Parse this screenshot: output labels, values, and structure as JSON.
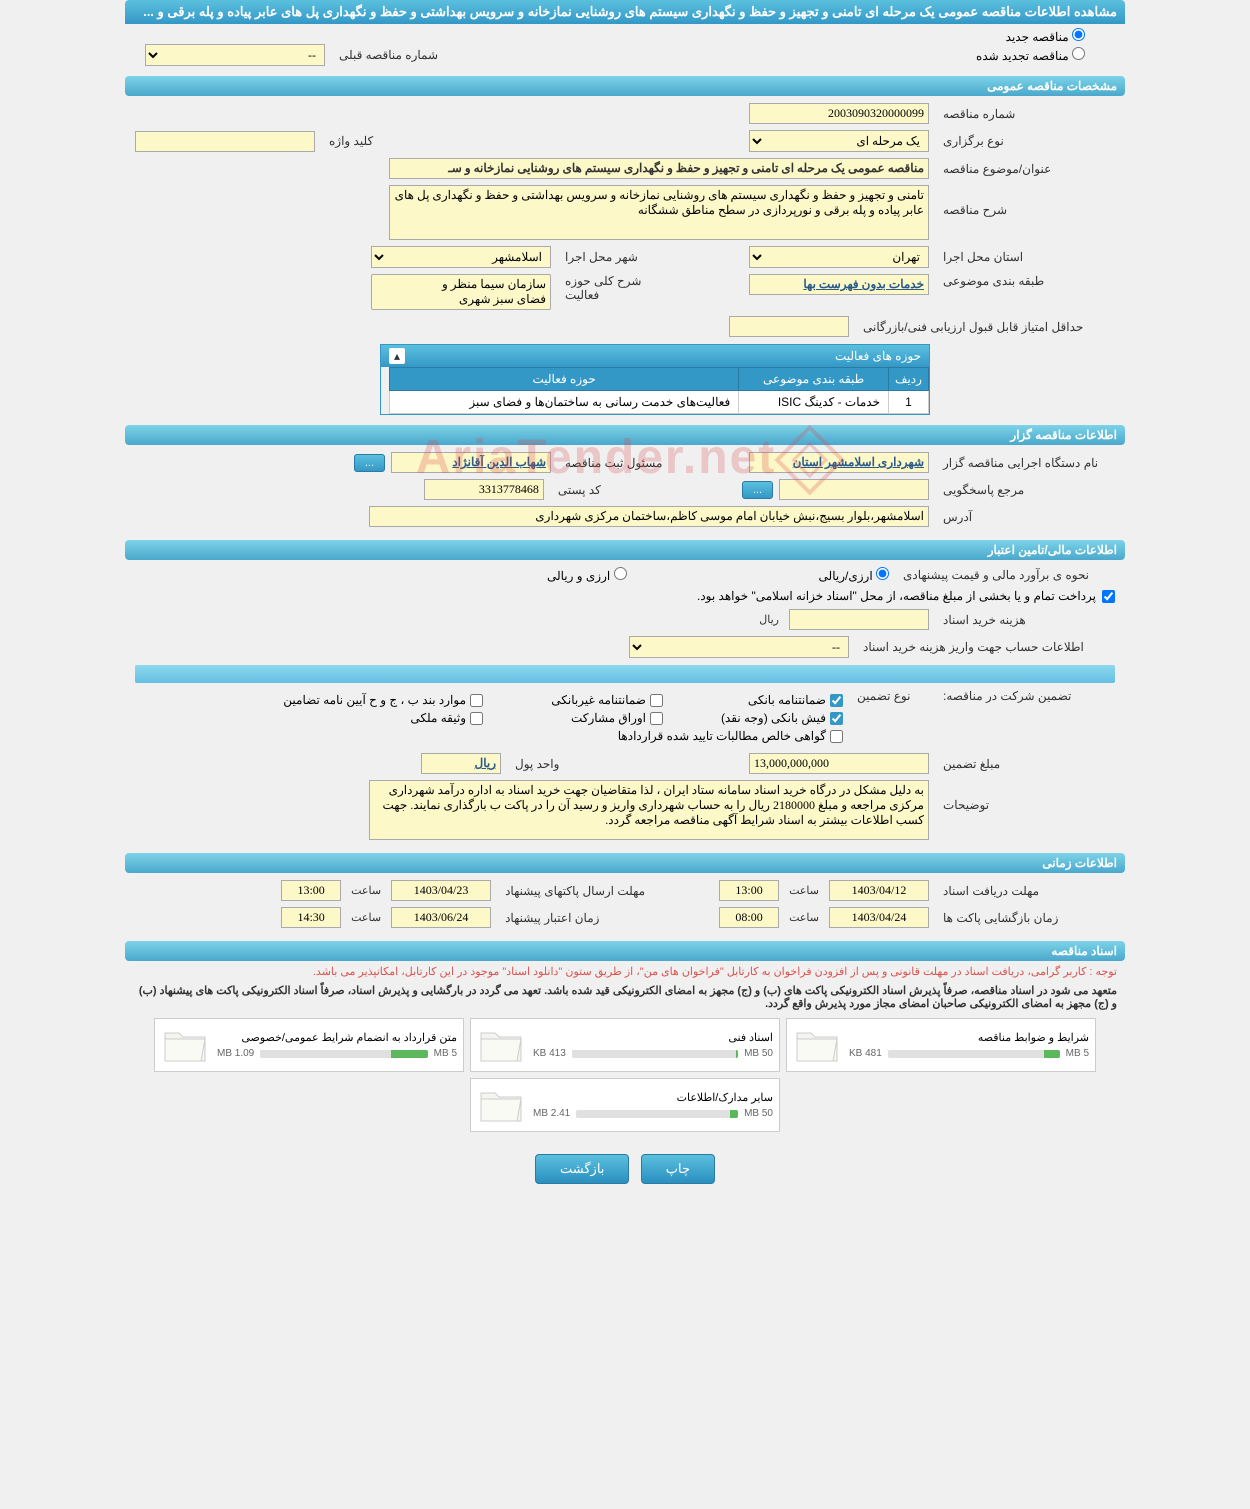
{
  "page_title": "مشاهده اطلاعات مناقصه عمومی یک مرحله ای تامنی و تجهیز و حفظ و نگهداری سیستم های روشنایی نمازخانه و سرویس بهداشتی و حفظ و نگهداری پل های عابر پیاده و پله برقی و ...",
  "tender_type": {
    "new_label": "مناقصه جدید",
    "renewed_label": "مناقصه تجدید شده",
    "prev_number_label": "شماره مناقصه قبلی",
    "prev_number_value": "--"
  },
  "sections": {
    "general": "مشخصات مناقصه عمومی",
    "tenderer": "اطلاعات مناقصه گزار",
    "financial": "اطلاعات مالی/تامین اعتبار",
    "timing": "اطلاعات زمانی",
    "docs": "اسناد مناقصه"
  },
  "general": {
    "number_label": "شماره مناقصه",
    "number_value": "2003090320000099",
    "holding_type_label": "نوع برگزاری",
    "holding_type_value": "یک مرحله ای",
    "keyword_label": "کلید واژه",
    "keyword_value": "",
    "subject_label": "عنوان/موضوع مناقصه",
    "subject_value": "مناقصه عمومی یک مرحله ای تامنی و تجهیز و حفظ و نگهداری سیستم های روشنایی نمازخانه و سـ",
    "desc_label": "شرح مناقصه",
    "desc_value": "تامنی و تجهیز و حفظ و نگهداری سیستم های روشنایی نمازخانه و سرویس بهداشتی و حفظ و نگهداری پل های عابر پیاده و پله برقی و نورپردازی در سطح مناطق ششگانه",
    "province_label": "استان محل اجرا",
    "province_value": "تهران",
    "city_label": "شهر محل اجرا",
    "city_value": "اسلامشهر",
    "category_label": "طبقه بندی موضوعی",
    "category_value": "خدمات بدون فهرست بها",
    "activity_scope_label": "شرح کلی حوزه فعالیت",
    "activity_scope_opt1": "سازمان سیما منظر و",
    "activity_scope_opt2": "فضای سبز شهری",
    "min_score_label": "حداقل امتیاز قابل قبول ارزیابی فنی/بازرگانی",
    "min_score_value": ""
  },
  "activity_table": {
    "title": "حوزه های فعالیت",
    "col_row": "ردیف",
    "col_category": "طبقه بندی موضوعی",
    "col_activity": "حوزه فعالیت",
    "rows": [
      {
        "idx": "1",
        "category": "خدمات - کدینگ ISIC",
        "activity": "فعالیت‌های خدمت رسانی به ساختمان‌ها و فضای سبز"
      }
    ]
  },
  "tenderer": {
    "org_label": "نام دستگاه اجرایی مناقصه گزار",
    "org_value": "شهرداری اسلامشهر استان",
    "reg_officer_label": "مسئول ثبت مناقصه",
    "reg_officer_value": "شهاب الدین آقانژاد",
    "more_btn": "...",
    "contact_label": "مرجع پاسخگویی",
    "contact_value": "",
    "contact_btn": "...",
    "postal_label": "کد پستی",
    "postal_value": "3313778468",
    "address_label": "آدرس",
    "address_value": "اسلامشهر،بلوار بسیج،نبش خیابان امام موسی کاظم،ساختمان مرکزی شهرداری"
  },
  "financial": {
    "estimate_label": "نحوه ی برآورد مالی و قیمت پیشنهادی",
    "rial_label": "ارزی/ریالی",
    "fx_label": "ارزی و ریالی",
    "treasury_note": "پرداخت تمام و یا بخشی از مبلغ مناقصه، از محل \"اسناد خزانه اسلامی\" خواهد بود.",
    "doc_cost_label": "هزینه خرید اسناد",
    "doc_cost_value": "",
    "doc_cost_unit": "ریال",
    "account_label": "اطلاعات حساب جهت واریز هزینه خرید اسناد",
    "account_value": "--",
    "guarantee_section_label": "تضمین شرکت در مناقصه:",
    "guarantee_type_label": "نوع تضمین",
    "g_bank": "ضمانتنامه بانکی",
    "g_nonbank": "ضمانتنامه غیربانکی",
    "g_clauses": "موارد بند ب ، ج و ح آیین نامه تضامین",
    "g_cash": "فیش بانکی (وجه نقد)",
    "g_bonds": "اوراق مشارکت",
    "g_property": "وثیقه ملکی",
    "g_contracts": "گواهی خالص مطالبات تایید شده قراردادها",
    "guarantee_amount_label": "مبلغ تضمین",
    "guarantee_amount_value": "13,000,000,000",
    "currency_unit_label": "واحد پول",
    "currency_unit_value": "ریال",
    "notes_label": "توضیحات",
    "notes_value": "به دلیل مشکل در درگاه خرید اسناد سامانه ستاد ایران ، لذا متقاضیان جهت خرید اسناد به اداره درآمد شهرداری مرکزی مراجعه و مبلغ 2180000 ریال را به حساب شهرداری واریز و رسید آن را در پاکت ب بارگذاری نمایند. جهت کسب اطلاعات بیشتر به اسناد شرایط آگهی مناقصه مراجعه گردد."
  },
  "timing": {
    "receive_deadline_label": "مهلت دریافت اسناد",
    "receive_deadline_date": "1403/04/12",
    "receive_deadline_time_label": "ساعت",
    "receive_deadline_time": "13:00",
    "submit_deadline_label": "مهلت ارسال پاکتهای پیشنهاد",
    "submit_deadline_date": "1403/04/23",
    "submit_deadline_time_label": "ساعت",
    "submit_deadline_time": "13:00",
    "opening_label": "زمان بازگشایی پاکت ها",
    "opening_date": "1403/04/24",
    "opening_time_label": "ساعت",
    "opening_time": "08:00",
    "validity_label": "زمان اعتبار پیشنهاد",
    "validity_date": "1403/06/24",
    "validity_time_label": "ساعت",
    "validity_time": "14:30"
  },
  "docs": {
    "notice1": "توجه : کاربر گرامی، دریافت اسناد در مهلت قانونی و پس از افزودن فراخوان به کارتابل \"فراخوان های من\"، از طریق ستون \"دانلود اسناد\" موجود در این کارتابل، امکانپذیر می باشد.",
    "notice2": "متعهد می شود در اسناد مناقصه، صرفاً پذیرش اسناد الکترونیکی پاکت های (ب) و (ج) مجهز به امضای الکترونیکی قید شده باشد. تعهد می گردد در بارگشایی و پذیرش اسناد، صرفاً اسناد الکترونیکی پاکت های پیشنهاد (ب) و (ج) مجهز به امضای الکترونیکی صاحبان امضای مجاز مورد پذیرش واقع گردد.",
    "items": [
      {
        "title": "شرایط و ضوابط مناقصه",
        "size": "481 KB",
        "limit": "5 MB",
        "pct": 9
      },
      {
        "title": "اسناد فنی",
        "size": "413 KB",
        "limit": "50 MB",
        "pct": 1
      },
      {
        "title": "متن قرارداد به انضمام شرایط عمومی/خصوصی",
        "size": "1.09 MB",
        "limit": "5 MB",
        "pct": 22
      },
      {
        "title": "سایر مدارک/اطلاعات",
        "size": "2.41 MB",
        "limit": "50 MB",
        "pct": 5
      }
    ]
  },
  "footer": {
    "print": "چاپ",
    "back": "بازگشت"
  },
  "watermark": "AriaTender.net"
}
